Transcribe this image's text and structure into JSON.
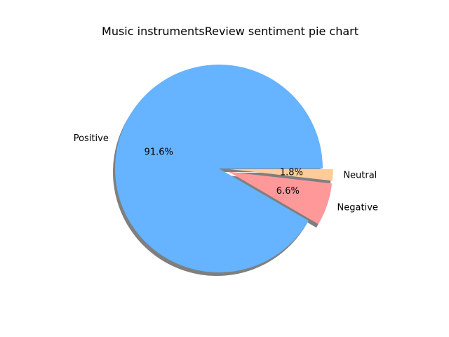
{
  "chart_data": {
    "type": "pie",
    "title": "Music instrumentsReview sentiment pie chart",
    "slices": [
      {
        "label": "Positive",
        "value": 91.6,
        "pct_label": "91.6%",
        "color": "#66b3ff"
      },
      {
        "label": "Negative",
        "value": 6.6,
        "pct_label": "6.6%",
        "color": "#ff9999"
      },
      {
        "label": "Neutral",
        "value": 1.8,
        "pct_label": "1.8%",
        "color": "#ffcc99"
      }
    ],
    "shadow": true,
    "exploded": [
      "Negative",
      "Neutral"
    ],
    "legend": "none"
  }
}
